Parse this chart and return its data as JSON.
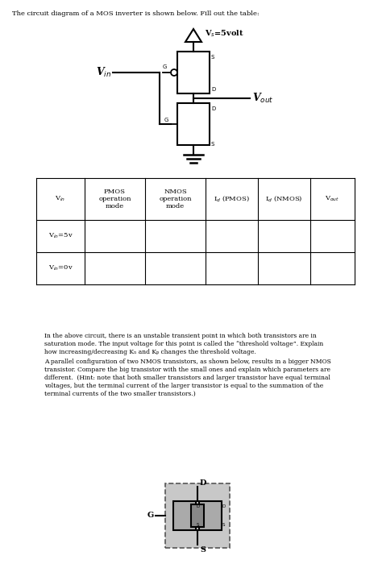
{
  "title": "The circuit diagram of a MOS inverter is shown below. Fill out the table:",
  "bg_white": "#ffffff",
  "bg_gray": "#d0d0d0",
  "vdd_label": "V$_s$=5volt",
  "vin_label": "V$_{in}$",
  "vout_label": "V$_{out}$",
  "table_col_labels": [
    "V$_{in}$",
    "PMOS\noperation\nmode",
    "NMOS\noperation\nmode",
    "I$_d$ (PMOS)",
    "I$_d$ (NMOS)",
    "V$_{out}$"
  ],
  "row1_label": "V$_{in}$=5v",
  "row2_label": "V$_{in}$=0v",
  "paragraph1": "In the above circuit, there is an unstable transient point in which both transistors are in\nsaturation mode. The input voltage for this point is called the “threshold voltage”. Explain\nhow increasing/decreasing Kₙ and Kₚ changes the threshold voltage.",
  "paragraph2": "A parallel configuration of two NMOS transistors, as shown below, results in a bigger NMOS\ntransistor. Compare the big transistor with the small ones and explain which parameters are\ndifferent.  (Hint: note that both smaller transistors and larger transistor have equal terminal\nvoltages, but the terminal current of the larger transistor is equal to the summation of the\nterminal currents of the two smaller transistors.)"
}
